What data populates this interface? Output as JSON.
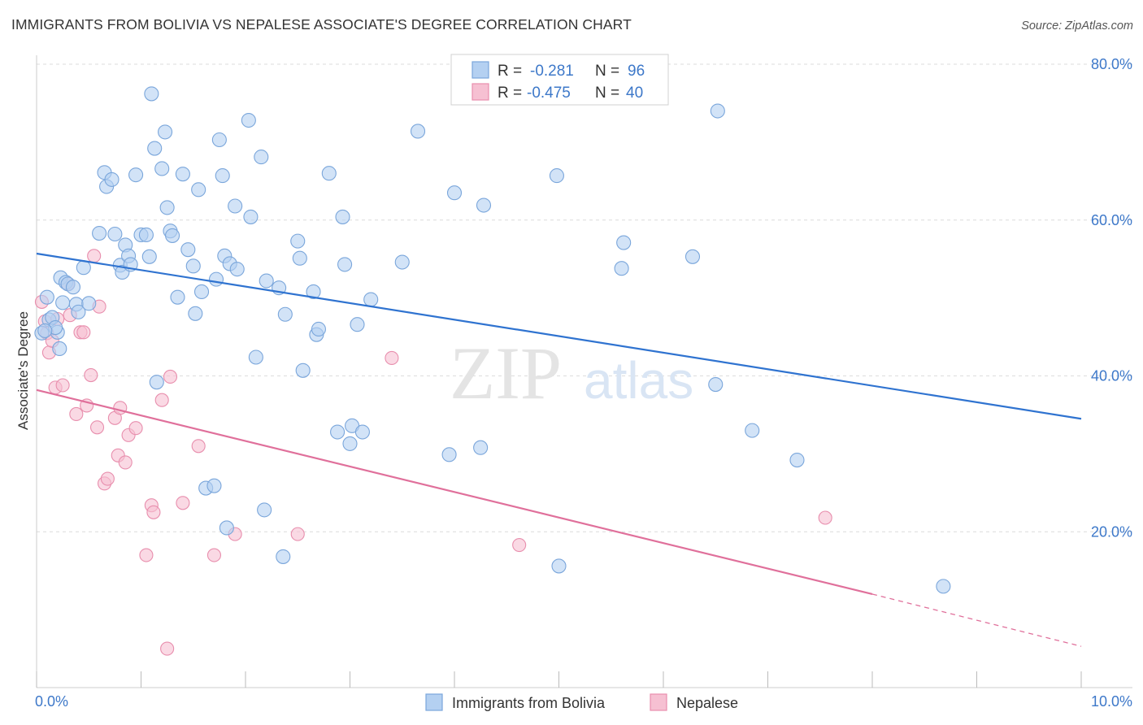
{
  "title": "IMMIGRANTS FROM BOLIVIA VS NEPALESE ASSOCIATE'S DEGREE CORRELATION CHART",
  "source": "Source: ZipAtlas.com",
  "watermark": {
    "zip": "ZIP",
    "atlas": "atlas"
  },
  "colors": {
    "blue_fill": "#b4d0f1",
    "blue_stroke": "#7aa6db",
    "blue_line": "#2f73d0",
    "pink_fill": "#f6c0d2",
    "pink_stroke": "#e88ead",
    "pink_line": "#e0709b",
    "tick_text": "#3d78c9",
    "grid": "#dcdcdc"
  },
  "legend": {
    "rows": [
      {
        "r_label": "R =",
        "r_value": "-0.281",
        "n_label": "N =",
        "n_value": "96"
      },
      {
        "r_label": "R =",
        "r_value": "-0.475",
        "n_label": "N =",
        "n_value": "40"
      }
    ]
  },
  "chart_data": {
    "type": "scatter",
    "xlabel": "",
    "ylabel": "Associate's Degree",
    "xlim": [
      0,
      10
    ],
    "ylim": [
      0,
      80
    ],
    "x_tick_labels": [
      "0.0%",
      "10.0%"
    ],
    "y_ticks": [
      20,
      40,
      60,
      80
    ],
    "y_tick_labels": [
      "20.0%",
      "40.0%",
      "60.0%",
      "80.0%"
    ],
    "grid": true,
    "legend_position": "top-center",
    "series": [
      {
        "name": "Immigrants from Bolivia",
        "color": "#b4d0f1",
        "trend": {
          "x0": 0.0,
          "y0": 55.7,
          "x1": 10.0,
          "y1": 34.5
        },
        "points": [
          [
            0.05,
            45.5
          ],
          [
            0.1,
            50.1
          ],
          [
            0.12,
            47.2
          ],
          [
            0.15,
            47.5
          ],
          [
            0.2,
            45.6
          ],
          [
            0.22,
            43.5
          ],
          [
            0.23,
            52.6
          ],
          [
            0.25,
            49.4
          ],
          [
            0.28,
            52.0
          ],
          [
            0.3,
            51.8
          ],
          [
            0.35,
            51.4
          ],
          [
            0.38,
            49.2
          ],
          [
            0.4,
            48.2
          ],
          [
            0.45,
            53.9
          ],
          [
            0.5,
            49.3
          ],
          [
            0.6,
            58.3
          ],
          [
            0.65,
            66.1
          ],
          [
            0.67,
            64.3
          ],
          [
            0.72,
            65.2
          ],
          [
            0.75,
            58.2
          ],
          [
            0.8,
            54.2
          ],
          [
            0.82,
            53.3
          ],
          [
            0.85,
            56.8
          ],
          [
            0.88,
            55.4
          ],
          [
            0.9,
            54.3
          ],
          [
            0.95,
            65.8
          ],
          [
            1.0,
            58.1
          ],
          [
            1.05,
            58.1
          ],
          [
            1.08,
            55.3
          ],
          [
            1.1,
            76.2
          ],
          [
            1.13,
            69.2
          ],
          [
            1.15,
            39.2
          ],
          [
            1.2,
            66.6
          ],
          [
            1.23,
            71.3
          ],
          [
            1.25,
            61.6
          ],
          [
            1.28,
            58.6
          ],
          [
            1.3,
            58.0
          ],
          [
            1.35,
            50.1
          ],
          [
            1.4,
            65.9
          ],
          [
            1.45,
            56.2
          ],
          [
            1.5,
            54.1
          ],
          [
            1.52,
            48.0
          ],
          [
            1.55,
            63.9
          ],
          [
            1.58,
            50.8
          ],
          [
            1.62,
            25.6
          ],
          [
            1.7,
            25.9
          ],
          [
            1.72,
            52.4
          ],
          [
            1.75,
            70.3
          ],
          [
            1.78,
            65.7
          ],
          [
            1.8,
            55.4
          ],
          [
            1.82,
            20.5
          ],
          [
            1.85,
            54.4
          ],
          [
            1.9,
            61.8
          ],
          [
            1.92,
            53.7
          ],
          [
            2.05,
            60.4
          ],
          [
            2.03,
            72.8
          ],
          [
            2.1,
            42.4
          ],
          [
            2.15,
            68.1
          ],
          [
            2.18,
            22.8
          ],
          [
            2.2,
            52.2
          ],
          [
            2.32,
            51.3
          ],
          [
            2.36,
            16.8
          ],
          [
            2.38,
            47.9
          ],
          [
            2.5,
            57.3
          ],
          [
            2.52,
            55.1
          ],
          [
            2.55,
            40.7
          ],
          [
            2.65,
            50.8
          ],
          [
            2.68,
            45.3
          ],
          [
            2.7,
            46.0
          ],
          [
            2.8,
            66.0
          ],
          [
            2.88,
            32.8
          ],
          [
            2.93,
            60.4
          ],
          [
            2.95,
            54.3
          ],
          [
            3.0,
            31.3
          ],
          [
            3.02,
            33.6
          ],
          [
            3.07,
            46.6
          ],
          [
            3.12,
            32.8
          ],
          [
            3.2,
            49.8
          ],
          [
            3.5,
            54.6
          ],
          [
            3.65,
            71.4
          ],
          [
            3.95,
            29.9
          ],
          [
            4.0,
            63.5
          ],
          [
            4.25,
            30.8
          ],
          [
            4.28,
            61.9
          ],
          [
            4.98,
            65.7
          ],
          [
            5.0,
            15.6
          ],
          [
            5.6,
            53.8
          ],
          [
            5.62,
            57.1
          ],
          [
            6.28,
            55.3
          ],
          [
            6.5,
            38.9
          ],
          [
            6.52,
            74.0
          ],
          [
            6.85,
            33.0
          ],
          [
            7.28,
            29.2
          ],
          [
            8.68,
            13.0
          ],
          [
            0.18,
            46.2
          ],
          [
            0.08,
            45.8
          ]
        ]
      },
      {
        "name": "Nepalese",
        "color": "#f6c0d2",
        "trend": {
          "x0": 0.0,
          "y0": 38.2,
          "x1": 8.0,
          "y1": 12.0,
          "dash_to_x": 10.0,
          "dash_to_y": 5.3
        },
        "points": [
          [
            0.05,
            49.5
          ],
          [
            0.08,
            47.0
          ],
          [
            0.1,
            45.5
          ],
          [
            0.12,
            43.0
          ],
          [
            0.15,
            44.5
          ],
          [
            0.18,
            38.5
          ],
          [
            0.2,
            47.3
          ],
          [
            0.25,
            38.8
          ],
          [
            0.3,
            51.8
          ],
          [
            0.32,
            47.8
          ],
          [
            0.38,
            35.1
          ],
          [
            0.42,
            45.6
          ],
          [
            0.45,
            45.6
          ],
          [
            0.48,
            36.2
          ],
          [
            0.52,
            40.1
          ],
          [
            0.55,
            55.4
          ],
          [
            0.58,
            33.4
          ],
          [
            0.6,
            48.9
          ],
          [
            0.65,
            26.2
          ],
          [
            0.68,
            26.8
          ],
          [
            0.75,
            34.6
          ],
          [
            0.78,
            29.8
          ],
          [
            0.8,
            35.9
          ],
          [
            0.85,
            28.9
          ],
          [
            0.88,
            32.4
          ],
          [
            0.95,
            33.3
          ],
          [
            1.05,
            17.0
          ],
          [
            1.1,
            23.4
          ],
          [
            1.12,
            22.5
          ],
          [
            1.2,
            36.9
          ],
          [
            1.25,
            5.0
          ],
          [
            1.28,
            39.9
          ],
          [
            1.4,
            23.7
          ],
          [
            1.55,
            31.0
          ],
          [
            1.7,
            17.0
          ],
          [
            1.9,
            19.7
          ],
          [
            2.5,
            19.7
          ],
          [
            3.4,
            42.3
          ],
          [
            4.62,
            18.3
          ],
          [
            7.55,
            21.8
          ]
        ]
      }
    ]
  }
}
